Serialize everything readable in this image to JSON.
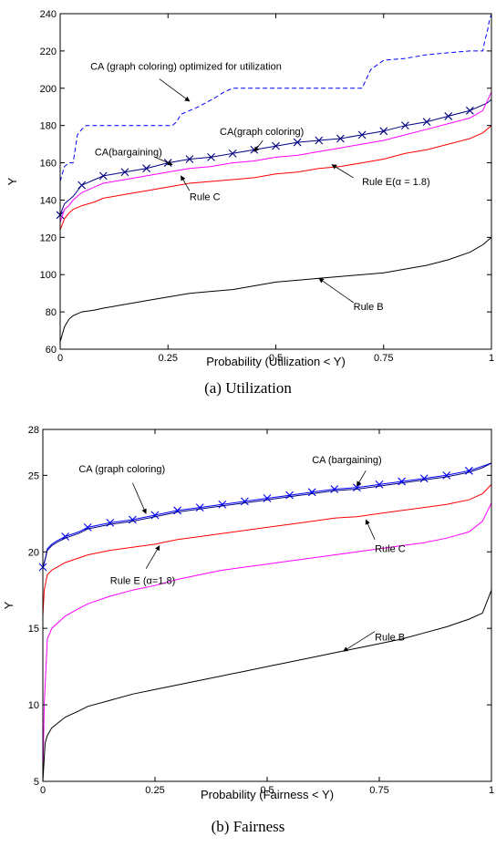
{
  "chart_data": [
    {
      "type": "line",
      "caption": "(a) Utilization",
      "xlabel": "Probability (Utilization < Y)",
      "ylabel": "Y",
      "xlim": [
        0,
        1
      ],
      "ylim": [
        60,
        240
      ],
      "xticks": [
        0,
        0.25,
        0.5,
        0.75,
        1
      ],
      "xtick_labels": [
        "0",
        "0.25",
        "0.5",
        "0.75",
        "1"
      ],
      "yticks": [
        60,
        80,
        100,
        120,
        140,
        160,
        180,
        200,
        220,
        240
      ],
      "ytick_labels": [
        "60",
        "80",
        "100",
        "120",
        "140",
        "160",
        "180",
        "200",
        "220",
        "240"
      ],
      "grid": false,
      "series": [
        {
          "key": "optimized",
          "color": "#0000ff",
          "dash": "5,3",
          "marker": "none",
          "x": [
            0,
            0.01,
            0.02,
            0.03,
            0.04,
            0.05,
            0.06,
            0.08,
            0.15,
            0.26,
            0.27,
            0.28,
            0.3,
            0.32,
            0.36,
            0.38,
            0.4,
            0.5,
            0.7,
            0.72,
            0.75,
            0.8,
            0.85,
            0.9,
            0.95,
            0.97,
            0.98,
            0.985,
            0.99,
            0.995,
            1.0
          ],
          "y": [
            150,
            158,
            160,
            160,
            175,
            178,
            180,
            180,
            180,
            180,
            182,
            186,
            188,
            190,
            195,
            198,
            200,
            200,
            200,
            210,
            215,
            216,
            218,
            219,
            220,
            220,
            220,
            226,
            230,
            236,
            240
          ]
        },
        {
          "key": "graph_coloring",
          "color": "#000080",
          "dash": "",
          "marker": "x",
          "x": [
            0,
            0.01,
            0.02,
            0.03,
            0.05,
            0.08,
            0.1,
            0.15,
            0.2,
            0.25,
            0.3,
            0.35,
            0.4,
            0.45,
            0.5,
            0.55,
            0.6,
            0.65,
            0.7,
            0.75,
            0.8,
            0.85,
            0.9,
            0.95,
            0.97,
            0.99,
            1.0
          ],
          "y": [
            132,
            138,
            140,
            142,
            148,
            151,
            153,
            155,
            157,
            160,
            162,
            163,
            165,
            167,
            169,
            171,
            172,
            173,
            175,
            177,
            180,
            182,
            185,
            188,
            190,
            192,
            194
          ],
          "markers_x": [
            0,
            0.05,
            0.1,
            0.15,
            0.2,
            0.25,
            0.3,
            0.35,
            0.4,
            0.45,
            0.5,
            0.55,
            0.6,
            0.65,
            0.7,
            0.75,
            0.8,
            0.85,
            0.9,
            0.95
          ]
        },
        {
          "key": "bargaining",
          "color": "#ff00ff",
          "dash": "",
          "marker": "none",
          "x": [
            0,
            0.01,
            0.02,
            0.03,
            0.05,
            0.08,
            0.1,
            0.15,
            0.2,
            0.25,
            0.3,
            0.35,
            0.4,
            0.45,
            0.5,
            0.55,
            0.6,
            0.65,
            0.7,
            0.75,
            0.8,
            0.85,
            0.9,
            0.95,
            0.98,
            1.0
          ],
          "y": [
            128,
            135,
            137,
            140,
            144,
            147,
            149,
            151,
            153,
            155,
            157,
            158,
            160,
            161,
            163,
            164,
            166,
            168,
            170,
            172,
            175,
            178,
            181,
            184,
            188,
            198
          ]
        },
        {
          "key": "rule_e",
          "color": "#ff0000",
          "dash": "",
          "marker": "none",
          "x": [
            0,
            0.01,
            0.02,
            0.03,
            0.05,
            0.08,
            0.1,
            0.15,
            0.2,
            0.25,
            0.3,
            0.35,
            0.4,
            0.45,
            0.5,
            0.55,
            0.6,
            0.65,
            0.7,
            0.75,
            0.8,
            0.85,
            0.9,
            0.95,
            0.98,
            1.0
          ],
          "y": [
            124,
            130,
            133,
            135,
            137,
            139,
            141,
            143,
            145,
            147,
            149,
            150,
            151,
            152,
            154,
            155,
            157,
            158,
            160,
            162,
            165,
            167,
            170,
            173,
            176,
            180
          ]
        },
        {
          "key": "rule_b",
          "color": "#000000",
          "dash": "",
          "marker": "none",
          "x": [
            0,
            0.01,
            0.02,
            0.03,
            0.05,
            0.08,
            0.1,
            0.15,
            0.2,
            0.25,
            0.3,
            0.35,
            0.4,
            0.45,
            0.5,
            0.55,
            0.6,
            0.65,
            0.7,
            0.75,
            0.8,
            0.85,
            0.9,
            0.95,
            0.98,
            1.0
          ],
          "y": [
            64,
            72,
            76,
            78,
            80,
            81,
            82,
            84,
            86,
            88,
            90,
            91,
            92,
            94,
            96,
            97,
            98,
            99,
            100,
            101,
            103,
            105,
            108,
            112,
            116,
            120
          ]
        }
      ],
      "annotations": [
        {
          "text": "CA (graph coloring) optimized for utilization",
          "tx": 0.07,
          "ty": 210,
          "ax": 0.23,
          "ay": 205,
          "hx": 0.3,
          "hy": 193
        },
        {
          "text": "CA(bargaining)",
          "tx": 0.08,
          "ty": 164,
          "ax": 0.22,
          "ay": 163,
          "hx": 0.26,
          "hy": 159
        },
        {
          "text": "CA(graph coloring)",
          "tx": 0.37,
          "ty": 175,
          "ax": 0.47,
          "ay": 172,
          "hx": 0.45,
          "hy": 166
        },
        {
          "text": "Rule C",
          "tx": 0.3,
          "ty": 140,
          "ax": 0.3,
          "ay": 145,
          "hx": 0.28,
          "hy": 153
        },
        {
          "text": "Rule E(α = 1.8)",
          "tx": 0.7,
          "ty": 148,
          "ax": 0.68,
          "ay": 152,
          "hx": 0.63,
          "hy": 159
        },
        {
          "text": "Rule B",
          "tx": 0.68,
          "ty": 81,
          "ax": 0.68,
          "ay": 85,
          "hx": 0.6,
          "hy": 98
        }
      ]
    },
    {
      "type": "line",
      "caption": "(b) Fairness",
      "xlabel": "Probability (Fairness < Y)",
      "ylabel": "Y",
      "xlim": [
        0,
        1
      ],
      "ylim": [
        5,
        28
      ],
      "xticks": [
        0,
        0.25,
        0.5,
        0.75,
        1
      ],
      "xtick_labels": [
        "0",
        "0.25",
        "0.5",
        "0.75",
        "1"
      ],
      "yticks": [
        5,
        10,
        15,
        20,
        25,
        28
      ],
      "ytick_labels": [
        "5",
        "10",
        "15",
        "20",
        "25",
        "28"
      ],
      "grid": false,
      "series": [
        {
          "key": "bargaining",
          "color": "#0000ff",
          "dash": "",
          "marker": "x",
          "x": [
            0,
            0.005,
            0.01,
            0.02,
            0.03,
            0.05,
            0.08,
            0.1,
            0.15,
            0.2,
            0.25,
            0.3,
            0.35,
            0.4,
            0.45,
            0.5,
            0.55,
            0.6,
            0.65,
            0.7,
            0.75,
            0.8,
            0.85,
            0.9,
            0.95,
            0.98,
            1.0
          ],
          "y": [
            19.0,
            19.5,
            20.2,
            20.5,
            20.7,
            21.0,
            21.3,
            21.6,
            21.9,
            22.1,
            22.4,
            22.7,
            22.9,
            23.1,
            23.3,
            23.5,
            23.7,
            23.9,
            24.1,
            24.2,
            24.4,
            24.6,
            24.8,
            25.0,
            25.3,
            25.6,
            25.8
          ],
          "markers_x": [
            0,
            0.05,
            0.1,
            0.15,
            0.2,
            0.25,
            0.3,
            0.35,
            0.4,
            0.45,
            0.5,
            0.55,
            0.6,
            0.65,
            0.7,
            0.75,
            0.8,
            0.85,
            0.9,
            0.95
          ]
        },
        {
          "key": "graph_coloring",
          "color": "#000080",
          "dash": "",
          "marker": "none",
          "x": [
            0,
            0.005,
            0.01,
            0.02,
            0.03,
            0.05,
            0.08,
            0.1,
            0.15,
            0.2,
            0.25,
            0.3,
            0.35,
            0.4,
            0.45,
            0.5,
            0.55,
            0.6,
            0.65,
            0.7,
            0.75,
            0.8,
            0.85,
            0.9,
            0.95,
            0.98,
            1.0
          ],
          "y": [
            19.0,
            19.5,
            20.1,
            20.4,
            20.6,
            20.9,
            21.2,
            21.5,
            21.8,
            22.0,
            22.3,
            22.6,
            22.8,
            23.0,
            23.2,
            23.4,
            23.6,
            23.8,
            24.0,
            24.1,
            24.3,
            24.5,
            24.7,
            24.9,
            25.2,
            25.5,
            25.8
          ]
        },
        {
          "key": "rule_e",
          "color": "#ff0000",
          "dash": "",
          "marker": "none",
          "x": [
            0,
            0.003,
            0.01,
            0.02,
            0.05,
            0.08,
            0.1,
            0.15,
            0.2,
            0.25,
            0.3,
            0.35,
            0.4,
            0.45,
            0.5,
            0.55,
            0.6,
            0.65,
            0.7,
            0.75,
            0.8,
            0.85,
            0.9,
            0.95,
            0.98,
            1.0
          ],
          "y": [
            15.8,
            17.5,
            18.5,
            18.8,
            19.3,
            19.6,
            19.8,
            20.1,
            20.3,
            20.5,
            20.8,
            21.0,
            21.2,
            21.4,
            21.6,
            21.8,
            22.0,
            22.2,
            22.3,
            22.5,
            22.7,
            22.9,
            23.1,
            23.4,
            23.8,
            24.4
          ]
        },
        {
          "key": "rule_c",
          "color": "#ff00ff",
          "dash": "",
          "marker": "none",
          "x": [
            0,
            0.003,
            0.01,
            0.02,
            0.05,
            0.08,
            0.1,
            0.15,
            0.2,
            0.25,
            0.3,
            0.35,
            0.4,
            0.45,
            0.5,
            0.55,
            0.6,
            0.65,
            0.7,
            0.75,
            0.8,
            0.85,
            0.9,
            0.95,
            0.98,
            1.0
          ],
          "y": [
            5,
            10,
            14.3,
            15.0,
            15.8,
            16.3,
            16.6,
            17.1,
            17.5,
            17.8,
            18.2,
            18.5,
            18.8,
            19.0,
            19.2,
            19.4,
            19.6,
            19.8,
            20.0,
            20.2,
            20.4,
            20.6,
            20.9,
            21.3,
            22.0,
            23.2
          ]
        },
        {
          "key": "rule_b",
          "color": "#000000",
          "dash": "",
          "marker": "none",
          "x": [
            0,
            0.005,
            0.01,
            0.02,
            0.05,
            0.08,
            0.1,
            0.15,
            0.2,
            0.25,
            0.3,
            0.35,
            0.4,
            0.45,
            0.5,
            0.55,
            0.6,
            0.65,
            0.7,
            0.75,
            0.8,
            0.85,
            0.9,
            0.95,
            0.98,
            1.0
          ],
          "y": [
            5,
            7.5,
            8.0,
            8.5,
            9.2,
            9.6,
            9.9,
            10.3,
            10.7,
            11.0,
            11.3,
            11.6,
            11.9,
            12.2,
            12.5,
            12.8,
            13.1,
            13.4,
            13.7,
            14.0,
            14.3,
            14.7,
            15.1,
            15.6,
            16.0,
            17.5
          ]
        }
      ],
      "annotations": [
        {
          "text": "CA (graph coloring)",
          "tx": 0.08,
          "ty": 25.2,
          "ax": 0.2,
          "ay": 24.5,
          "hx": 0.23,
          "hy": 22.5
        },
        {
          "text": "CA (bargaining)",
          "tx": 0.6,
          "ty": 25.8,
          "ax": 0.72,
          "ay": 25.3,
          "hx": 0.7,
          "hy": 24.3
        },
        {
          "text": "Rule E (α=1.8)",
          "tx": 0.15,
          "ty": 17.9,
          "ax": 0.23,
          "ay": 18.9,
          "hx": 0.26,
          "hy": 20.4
        },
        {
          "text": "Rule C",
          "tx": 0.74,
          "ty": 20.0,
          "ax": 0.74,
          "ay": 20.8,
          "hx": 0.72,
          "hy": 22.1
        },
        {
          "text": "Rule B",
          "tx": 0.74,
          "ty": 14.2,
          "ax": 0.74,
          "ay": 14.8,
          "hx": 0.67,
          "hy": 13.5
        }
      ]
    }
  ]
}
